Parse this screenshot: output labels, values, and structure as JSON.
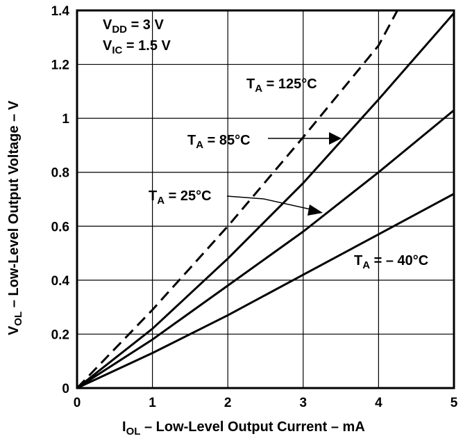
{
  "chart_data": {
    "type": "line",
    "title": "",
    "xlabel": {
      "main": "I",
      "sub": "OL",
      "rest": " – Low-Level Output Current – mA"
    },
    "ylabel": {
      "main": "V",
      "sub": "OL",
      "rest": " – Low-Level Output Voltage – V"
    },
    "xlim": [
      0,
      5
    ],
    "ylim": [
      0,
      1.4
    ],
    "x_ticks": [
      0,
      1,
      2,
      3,
      4,
      5
    ],
    "x_tick_labels": [
      "0",
      "1",
      "2",
      "3",
      "4",
      "5"
    ],
    "y_ticks": [
      0,
      0.2,
      0.4,
      0.6,
      0.8,
      1.0,
      1.2,
      1.4
    ],
    "y_tick_labels": [
      "0",
      "0.2",
      "0.4",
      "0.6",
      "0.8",
      "1",
      "1.2",
      "1.4"
    ],
    "grid": true,
    "conditions": [
      {
        "main": "V",
        "sub": "DD",
        "rest": " = 3 V"
      },
      {
        "main": "V",
        "sub": "IC",
        "rest": " = 1.5 V"
      }
    ],
    "series": [
      {
        "name": "T_A = 125°C",
        "style": "dashed",
        "x": [
          0,
          1,
          2,
          3,
          4,
          4.25
        ],
        "y": [
          0,
          0.29,
          0.6,
          0.93,
          1.27,
          1.4
        ]
      },
      {
        "name": "T_A = 85°C",
        "style": "solid",
        "x": [
          0,
          1,
          2,
          3,
          4,
          5
        ],
        "y": [
          0,
          0.22,
          0.48,
          0.76,
          1.07,
          1.39
        ]
      },
      {
        "name": "T_A = 25°C",
        "style": "solid",
        "x": [
          0,
          1,
          2,
          3,
          4,
          5
        ],
        "y": [
          0,
          0.18,
          0.38,
          0.58,
          0.8,
          1.03
        ]
      },
      {
        "name": "T_A = – 40°C",
        "style": "solid",
        "x": [
          0,
          1,
          2,
          3,
          4,
          5
        ],
        "y": [
          0,
          0.13,
          0.27,
          0.42,
          0.57,
          0.72
        ]
      }
    ],
    "annotations": [
      {
        "main": "T",
        "sub": "A",
        "rest": " = 125°C"
      },
      {
        "main": "T",
        "sub": "A",
        "rest": " = 85°C"
      },
      {
        "main": "T",
        "sub": "A",
        "rest": " = 25°C"
      },
      {
        "main": "T",
        "sub": "A",
        "rest": " = – 40°C"
      }
    ]
  }
}
